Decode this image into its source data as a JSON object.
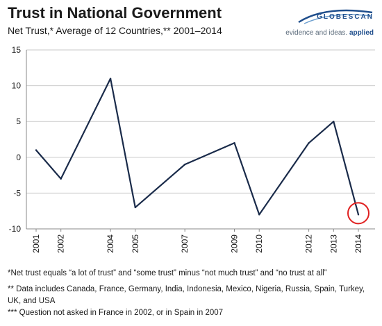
{
  "header": {
    "title": "Trust in National Government",
    "subtitle": "Net Trust,* Average of 12 Countries,**  2001–2014"
  },
  "logo": {
    "name": "GLOBESCAN",
    "tagline_prefix": "evidence and ideas.",
    "tagline_emphasis": "applied",
    "color": "#1f4e8c"
  },
  "chart_data": {
    "type": "line",
    "title": "Trust in National Government",
    "subtitle": "Net Trust,* Average of 12 Countries,**  2001–2014",
    "x": [
      2001,
      2002,
      2004,
      2005,
      2007,
      2009,
      2010,
      2012,
      2013,
      2014
    ],
    "tick_labels": [
      "2001",
      "2002",
      "2004",
      "2005",
      "2007",
      "2009",
      "2010",
      "2012",
      "2013",
      "2014"
    ],
    "series": [
      {
        "values": [
          1,
          -3,
          11,
          -7,
          -1,
          2,
          -8,
          2,
          5,
          -8
        ],
        "color": "#1a2b4a"
      }
    ],
    "ylim": [
      -10,
      15
    ],
    "yticks": [
      -10,
      -5,
      0,
      5,
      10,
      15
    ],
    "ytick_labels": [
      "-10",
      "-5",
      "0",
      "5",
      "10",
      "15"
    ],
    "grid": "horizontal",
    "grid_color": "#c8c8c8",
    "highlight": {
      "x": 2014,
      "shape": "circle",
      "color": "#e02020"
    }
  },
  "notes": [
    "*Net trust equals “a lot of trust” and “some trust” minus “not much trust” and “no trust at all”",
    "** Data includes Canada, France, Germany, India, Indonesia, Mexico, Nigeria, Russia, Spain, Turkey, UK, and USA",
    "*** Question not asked in France in 2002, or in Spain in 2007"
  ]
}
